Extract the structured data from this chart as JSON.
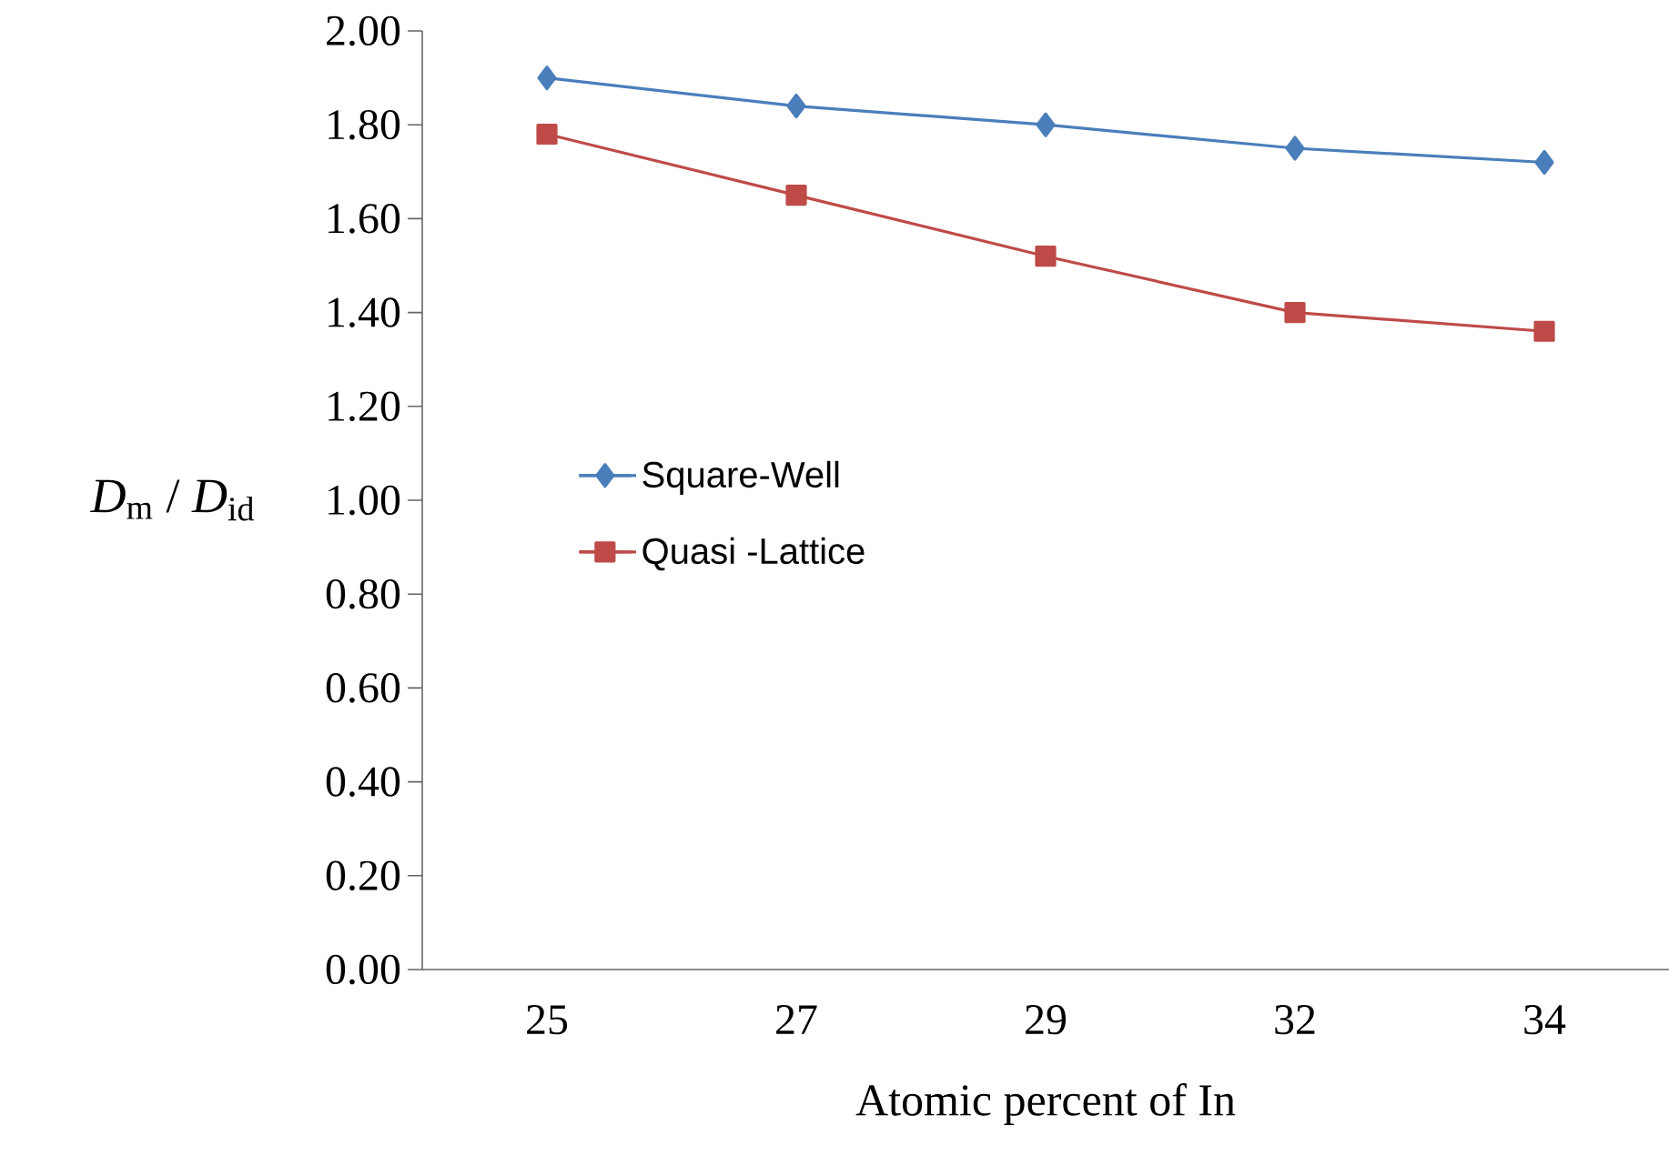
{
  "chart_data": {
    "type": "line",
    "xlabel": "Atomic percent of In",
    "ylabel": "*D*$_{m}$ / *D*$_{id}$",
    "categories": [
      "25",
      "27",
      "29",
      "32",
      "34"
    ],
    "series": [
      {
        "name": "Square-Well",
        "color": "#4a7ebb",
        "marker": "diamond",
        "values": [
          1.9,
          1.84,
          1.8,
          1.75,
          1.72
        ]
      },
      {
        "name": "Quasi -Lattice",
        "color": "#be4b48",
        "marker": "square",
        "values": [
          1.78,
          1.65,
          1.52,
          1.4,
          1.36
        ]
      }
    ],
    "ylim": [
      0,
      2
    ],
    "yticks": [
      {
        "value": 0,
        "label": "0.00"
      },
      {
        "value": 0.2,
        "label": "0.20"
      },
      {
        "value": 0.4,
        "label": "0.40"
      },
      {
        "value": 0.6,
        "label": "0.60"
      },
      {
        "value": 0.8,
        "label": "0.80"
      },
      {
        "value": 1.0,
        "label": "1.00"
      },
      {
        "value": 1.2,
        "label": "1.20"
      },
      {
        "value": 1.4,
        "label": "1.40"
      },
      {
        "value": 1.6,
        "label": "1.60"
      },
      {
        "value": 1.8,
        "label": "1.80"
      },
      {
        "value": 2.0,
        "label": "2.00"
      }
    ],
    "legend": "left",
    "grid": false
  }
}
